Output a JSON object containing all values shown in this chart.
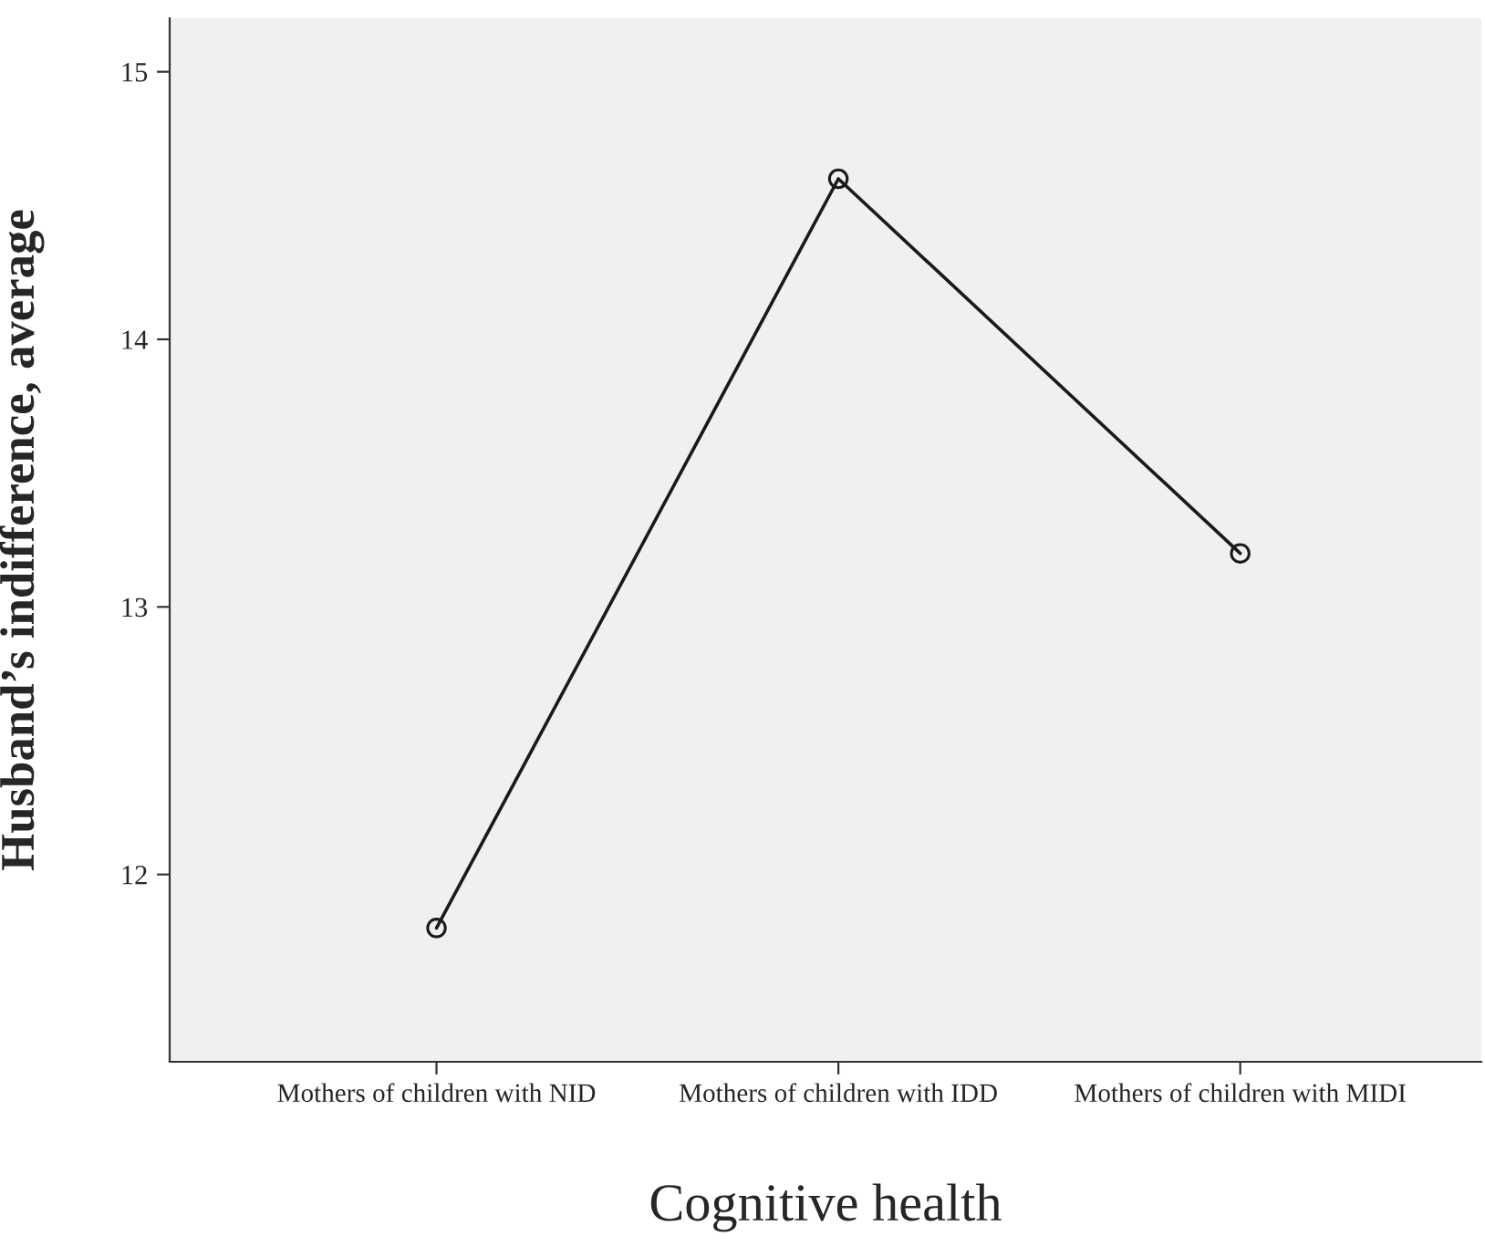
{
  "chart_data": {
    "type": "line",
    "xlabel": "Cognitive health",
    "ylabel": "Husband’s indifference, average",
    "categories": [
      "Mothers of children with NID",
      "Mothers of children with IDD",
      "Mothers of children with MIDI"
    ],
    "series": [
      {
        "color": "#1a1a1a",
        "values": [
          11.8,
          14.6,
          13.2
        ]
      }
    ],
    "ylim": [
      11.3,
      15.2
    ],
    "yticks": [
      12,
      13,
      14,
      15
    ],
    "marker": "circle",
    "line_style": "solid",
    "grid": false
  }
}
